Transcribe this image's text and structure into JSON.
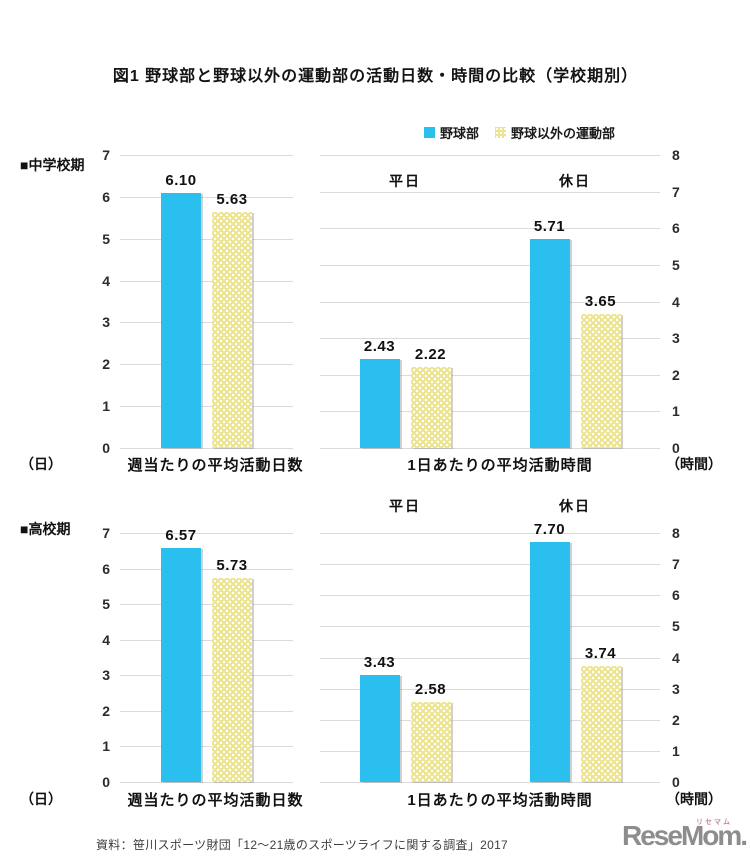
{
  "title": "図1 野球部と野球以外の運動部の活動日数・時間の比較（学校期別）",
  "legend": {
    "position": "top-right",
    "series": [
      {
        "label": "野球部",
        "color": "#2BBFF0",
        "pattern": "solid"
      },
      {
        "label": "野球以外の運動部",
        "color": "#EDE48F",
        "pattern": "dots"
      }
    ]
  },
  "chart_data": [
    {
      "type": "bar",
      "section": "■中学校期",
      "xlabel": "週当たりの平均活動日数",
      "unit": "（日）",
      "axis_side": "left",
      "ylim": [
        0,
        7
      ],
      "ytick_step": 1,
      "grid": true,
      "groups": [
        {
          "label": "",
          "bars": [
            {
              "series": "野球部",
              "value": "6.10"
            },
            {
              "series": "野球以外の運動部",
              "value": "5.63"
            }
          ]
        }
      ]
    },
    {
      "type": "bar",
      "section": "■中学校期",
      "xlabel": "1日あたりの平均活動時間",
      "unit": "（時間）",
      "axis_side": "right",
      "ylim": [
        0,
        8
      ],
      "ytick_step": 1,
      "grid": true,
      "groups": [
        {
          "label": "平日",
          "bars": [
            {
              "series": "野球部",
              "value": "2.43"
            },
            {
              "series": "野球以外の運動部",
              "value": "2.22"
            }
          ]
        },
        {
          "label": "休日",
          "bars": [
            {
              "series": "野球部",
              "value": "5.71"
            },
            {
              "series": "野球以外の運動部",
              "value": "3.65"
            }
          ]
        }
      ]
    },
    {
      "type": "bar",
      "section": "■高校期",
      "xlabel": "週当たりの平均活動日数",
      "unit": "（日）",
      "axis_side": "left",
      "ylim": [
        0,
        7
      ],
      "ytick_step": 1,
      "grid": true,
      "groups": [
        {
          "label": "",
          "bars": [
            {
              "series": "野球部",
              "value": "6.57"
            },
            {
              "series": "野球以外の運動部",
              "value": "5.73"
            }
          ]
        }
      ]
    },
    {
      "type": "bar",
      "section": "■高校期",
      "xlabel": "1日あたりの平均活動時間",
      "unit": "（時間）",
      "axis_side": "right",
      "ylim": [
        0,
        8
      ],
      "ytick_step": 1,
      "grid": true,
      "groups": [
        {
          "label": "平日",
          "bars": [
            {
              "series": "野球部",
              "value": "3.43"
            },
            {
              "series": "野球以外の運動部",
              "value": "2.58"
            }
          ]
        },
        {
          "label": "休日",
          "bars": [
            {
              "series": "野球部",
              "value": "7.70"
            },
            {
              "series": "野球以外の運動部",
              "value": "3.74"
            }
          ]
        }
      ]
    }
  ],
  "source": "資料：笹川スポーツ財団「12～21歳のスポーツライフに関する調査」2017",
  "logo": {
    "text": "ReseMom",
    "dot": ".",
    "ruby": "リセマム"
  },
  "colors": {
    "baseball": "#2BBFF0",
    "other_clubs": "#EDE48F",
    "gridline": "#DADADA",
    "logo_gray": "#8D8D8D"
  }
}
